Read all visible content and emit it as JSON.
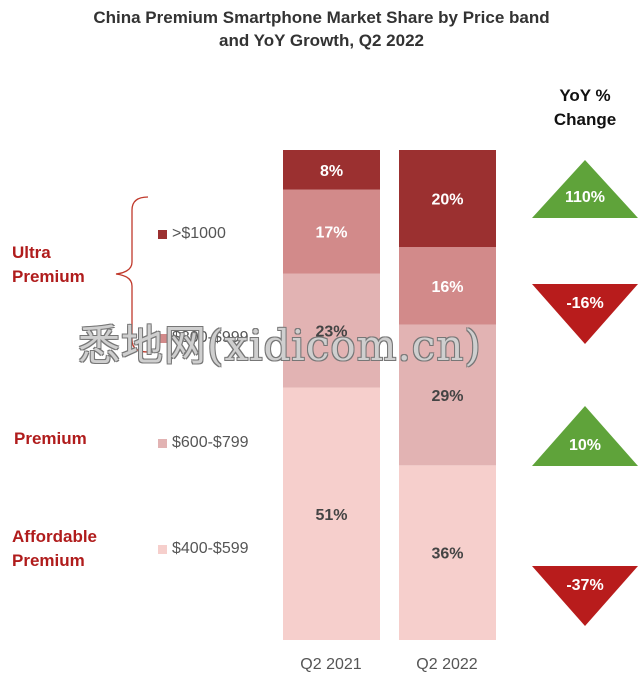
{
  "title_line1": "China Premium Smartphone Market Share by Price band",
  "title_line2": "and YoY Growth, Q2 2022",
  "yoy_header_line1": "YoY %",
  "yoy_header_line2": "Change",
  "groups": {
    "ultra": [
      "Ultra",
      "Premium"
    ],
    "premium": "Premium",
    "affordable": [
      "Affordable",
      "Premium"
    ]
  },
  "legend": [
    {
      "label": ">$1000",
      "color": "#9b3030"
    },
    {
      "label": "$800-$999",
      "color": "#d28a8a"
    },
    {
      "label": "$600-$799",
      "color": "#e2b3b3"
    },
    {
      "label": "$400-$599",
      "color": "#f6cfcc"
    }
  ],
  "watermark": "悉地网(xidicom.cn)",
  "chart_data": {
    "type": "bar",
    "stacked": true,
    "normalized_percent": true,
    "categories": [
      "Q2 2021",
      "Q2 2022"
    ],
    "series": [
      {
        "name": "$400-$599",
        "values": [
          51,
          36
        ],
        "color": "#f6cfcc",
        "label_color": "#444444"
      },
      {
        "name": "$600-$799",
        "values": [
          23,
          29
        ],
        "color": "#e2b3b3",
        "label_color": "#444444"
      },
      {
        "name": "$800-$999",
        "values": [
          17,
          16
        ],
        "color": "#d28a8a",
        "label_color": "#ffffff"
      },
      {
        "name": ">$1000",
        "values": [
          8,
          20
        ],
        "color": "#9b3030",
        "label_color": "#ffffff"
      }
    ],
    "yoy_change": [
      {
        "band": ">$1000",
        "label": "110%",
        "direction": "up",
        "color": "#5fa33a"
      },
      {
        "band": "$800-$999",
        "label": "-16%",
        "direction": "down",
        "color": "#b81c1c"
      },
      {
        "band": "$600-$799",
        "label": "10%",
        "direction": "up",
        "color": "#5fa33a"
      },
      {
        "band": "$400-$599",
        "label": "-37%",
        "direction": "down",
        "color": "#b81c1c"
      }
    ],
    "ylim": [
      0,
      100
    ]
  }
}
